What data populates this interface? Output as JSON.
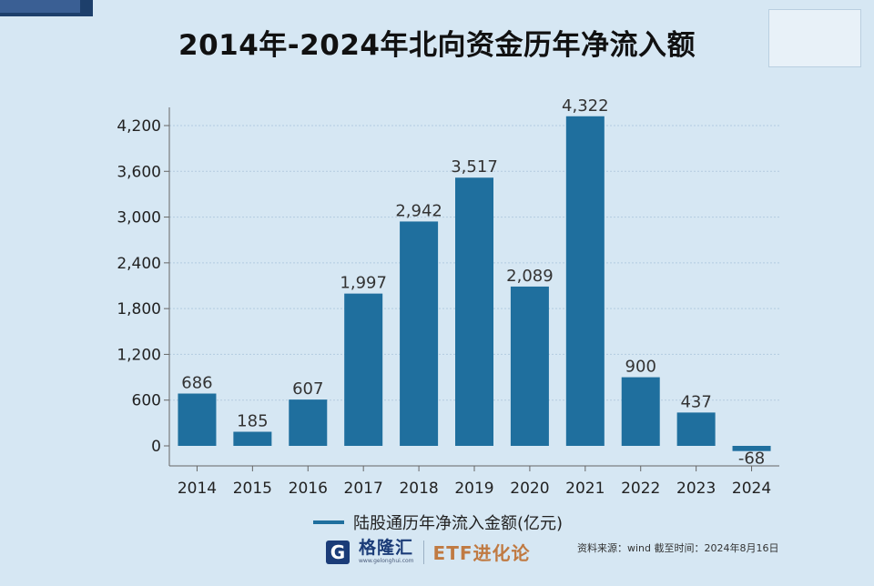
{
  "title": "2014年-2024年北向资金历年净流入额",
  "chart_data": {
    "type": "bar",
    "title": "2014年-2024年北向资金历年净流入额",
    "categories": [
      "2014",
      "2015",
      "2016",
      "2017",
      "2018",
      "2019",
      "2020",
      "2021",
      "2022",
      "2023",
      "2024"
    ],
    "series": [
      {
        "name": "陆股通历年净流入金额(亿元)",
        "values": [
          686,
          185,
          607,
          1997,
          2942,
          3517,
          2089,
          4322,
          900,
          437,
          -68
        ],
        "color": "#1f6f9e"
      }
    ],
    "data_labels": [
      "686",
      "185",
      "607",
      "1,997",
      "2,942",
      "3,517",
      "2,089",
      "4,322",
      "900",
      "437",
      "-68"
    ],
    "yticks": [
      0,
      600,
      1200,
      1800,
      2400,
      3000,
      3600,
      4200
    ],
    "ytick_labels": [
      "0",
      "600",
      "1,200",
      "1,800",
      "2,400",
      "3,000",
      "3,600",
      "4,200"
    ],
    "ylim": [
      -300,
      4600
    ],
    "grid": true,
    "legend_position": "bottom"
  },
  "legend": {
    "label": "陆股通历年净流入金额(亿元)"
  },
  "footer": {
    "logo_letter": "G",
    "logo_name": "格隆汇",
    "logo_url": "www.gelonghui.com",
    "brand": "ETF进化论",
    "source": "资料来源：wind   截至时间：2024年8月16日"
  },
  "colors": {
    "background": "#d6e7f3",
    "bar": "#1f6f9e",
    "grid": "#b3cbe0"
  }
}
